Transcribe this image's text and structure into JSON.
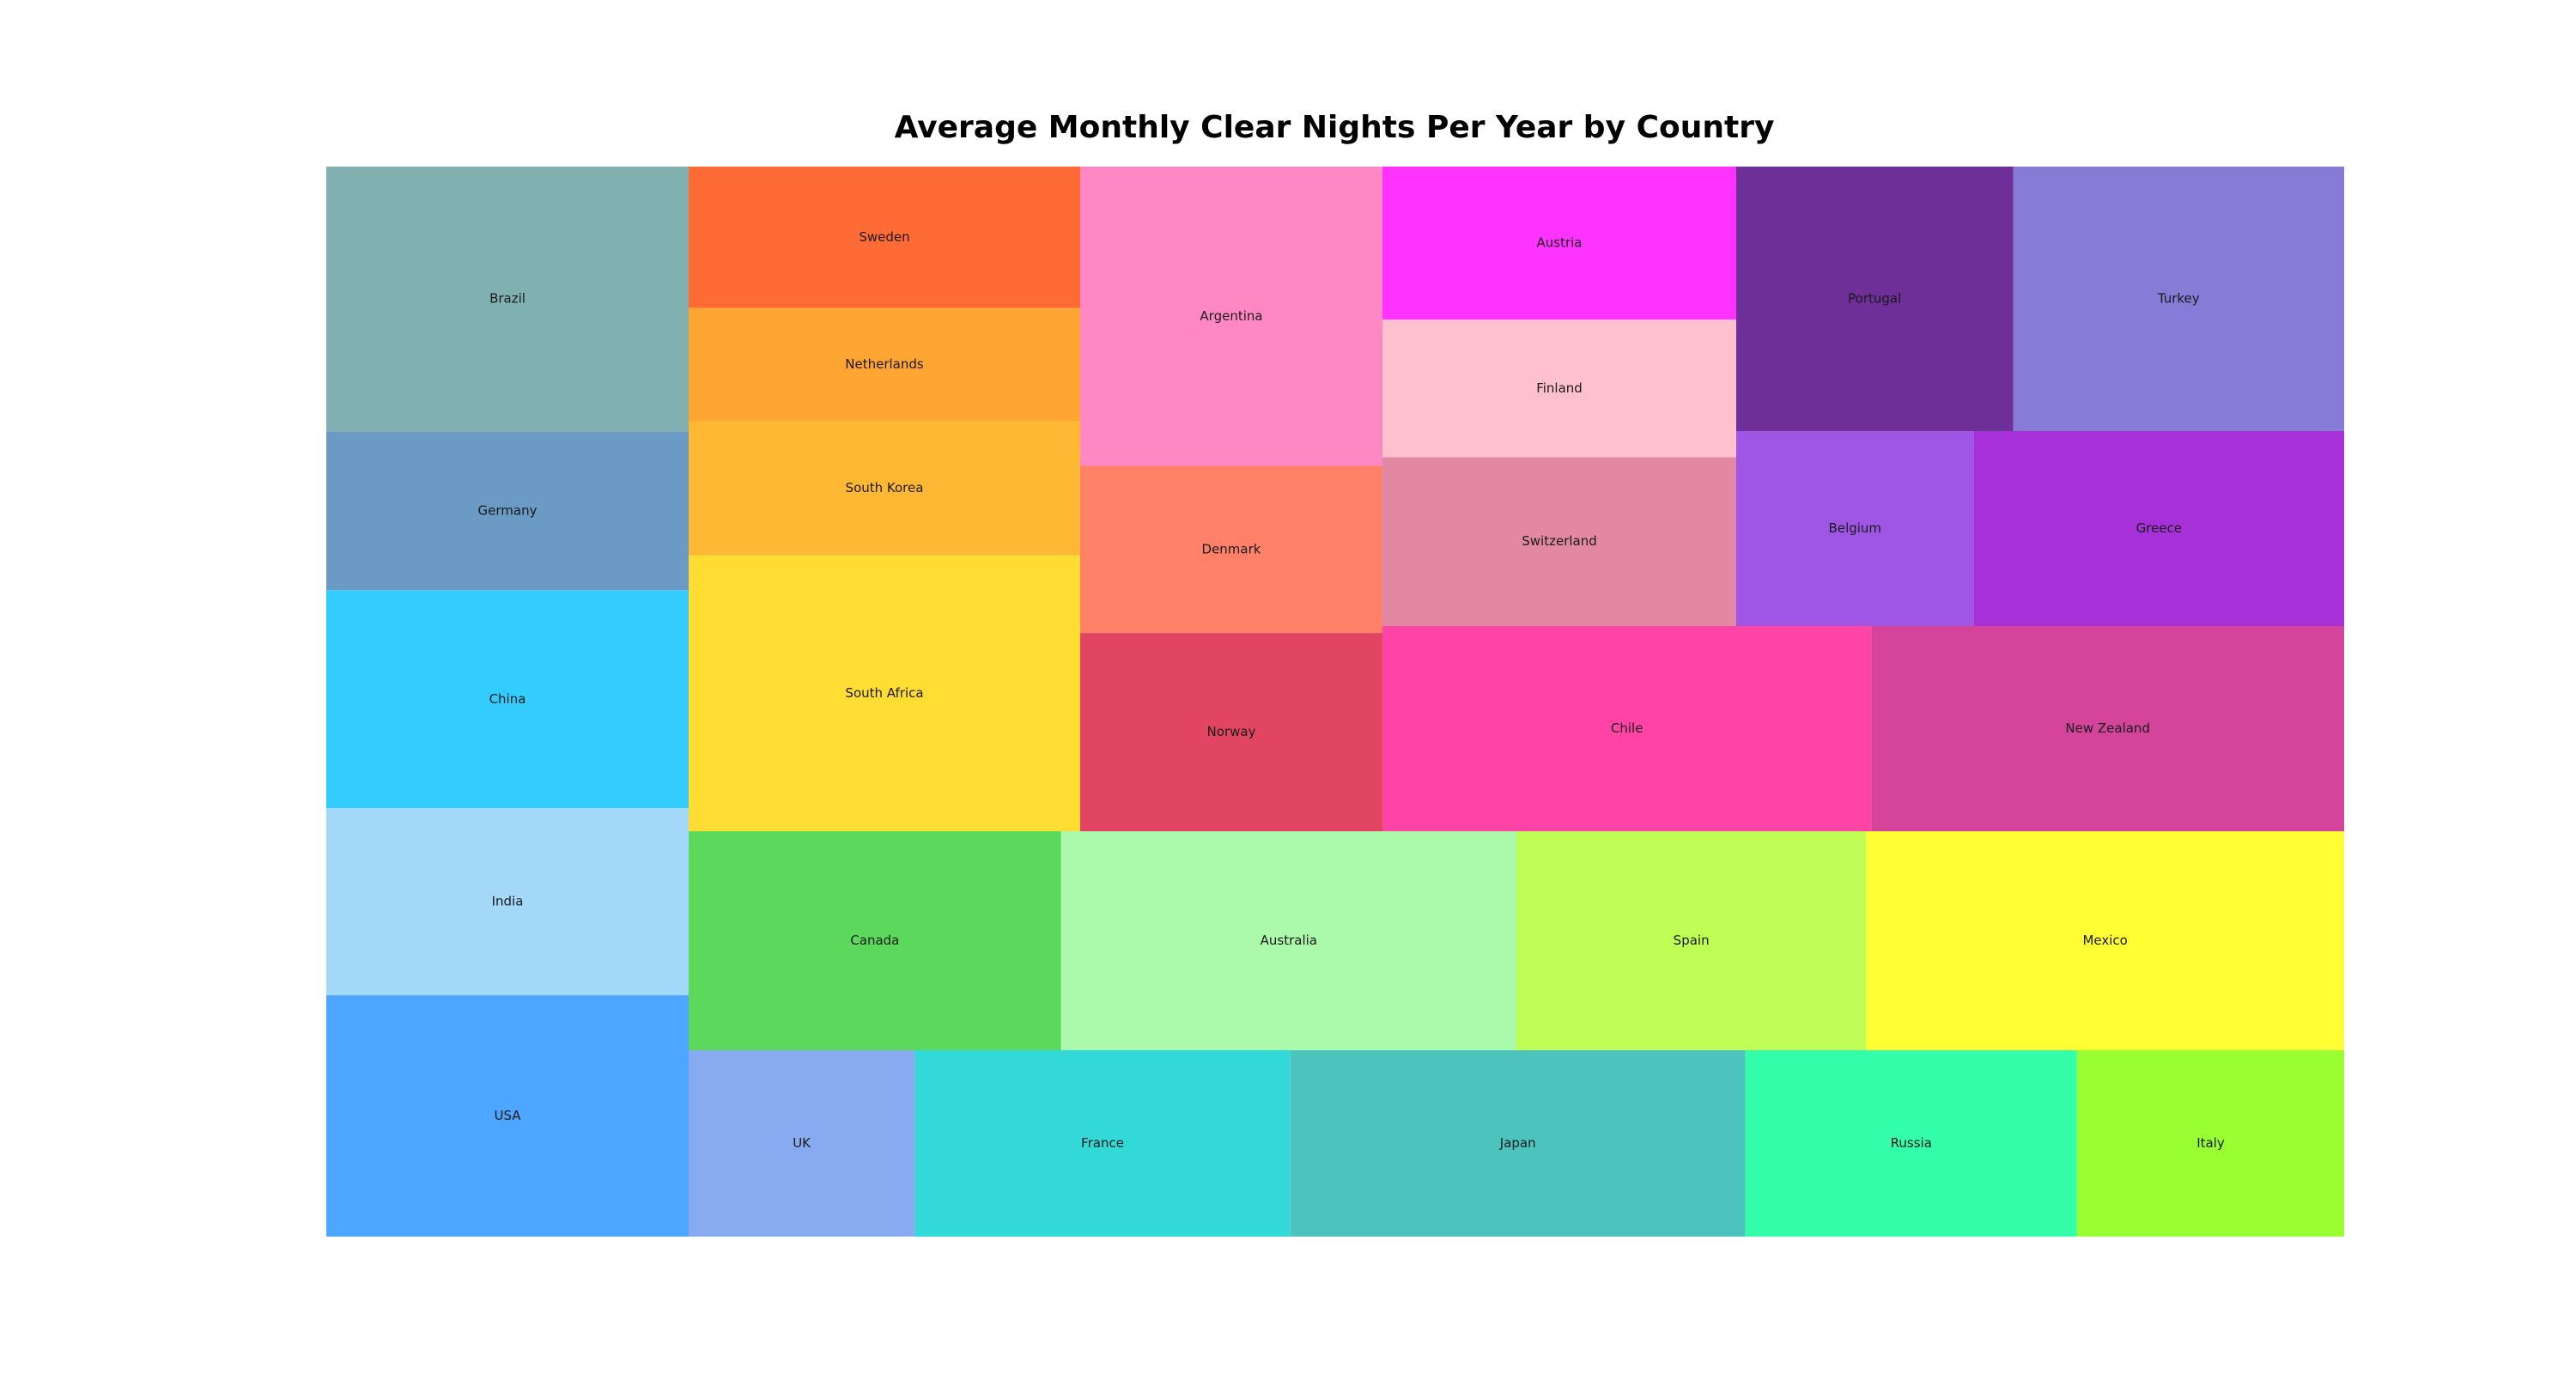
{
  "chart_data": {
    "type": "treemap",
    "title": "Average Monthly Clear Nights Per Year by Country",
    "groups": [
      {
        "cells": [
          {
            "name": "Brazil",
            "color": "#80B1B0",
            "value": 170
          },
          {
            "name": "Germany",
            "color": "#6B9AC4",
            "value": 102
          },
          {
            "name": "China",
            "color": "#33CCFF",
            "value": 140
          },
          {
            "name": "India",
            "color": "#A3D8F8",
            "value": 120
          },
          {
            "name": "USA",
            "color": "#4DA6FF",
            "value": 155
          }
        ]
      },
      {
        "cells": [
          {
            "name": "Sweden",
            "color": "#FF6B35",
            "value": 100
          },
          {
            "name": "Netherlands",
            "color": "#FFA533",
            "value": 80
          },
          {
            "name": "South Korea",
            "color": "#FFB833",
            "value": 95
          },
          {
            "name": "South Africa",
            "color": "#FFDD33",
            "value": 195
          }
        ]
      },
      {
        "cells": [
          {
            "name": "Argentina",
            "color": "#FF88C4",
            "value": 163
          },
          {
            "name": "Denmark",
            "color": "#FF8268",
            "value": 91
          },
          {
            "name": "Norway",
            "color": "#E24562",
            "value": 108
          }
        ]
      },
      {
        "cells": [
          {
            "name": "Austria",
            "color": "#FF33FF",
            "value": 98
          },
          {
            "name": "Finland",
            "color": "#FFC0CD",
            "value": 88
          },
          {
            "name": "Switzerland",
            "color": "#E288A5",
            "value": 108
          }
        ]
      },
      {
        "cells": [
          {
            "name": "Portugal",
            "color": "#6F2F98",
            "value": 133
          },
          {
            "name": "Turkey",
            "color": "#887BD8",
            "value": 159
          }
        ]
      },
      {
        "cells": [
          {
            "name": "Belgium",
            "color": "#A056E5",
            "value": 84
          },
          {
            "name": "Greece",
            "color": "#A731D8",
            "value": 131
          }
        ]
      },
      {
        "cells": [
          {
            "name": "Chile",
            "color": "#FF44A6",
            "value": 182
          },
          {
            "name": "New Zealand",
            "color": "#D3449A",
            "value": 176
          }
        ]
      },
      {
        "cells": [
          {
            "name": "Canada",
            "color": "#5CD95C",
            "value": 148
          },
          {
            "name": "Australia",
            "color": "#ABF9AA",
            "value": 181
          },
          {
            "name": "Spain",
            "color": "#BFFF55",
            "value": 139
          },
          {
            "name": "Mexico",
            "color": "#FFFF33",
            "value": 190
          }
        ]
      },
      {
        "cells": [
          {
            "name": "UK",
            "color": "#88AAF0",
            "value": 77
          },
          {
            "name": "France",
            "color": "#33D9D9",
            "value": 128
          },
          {
            "name": "Japan",
            "color": "#4DC3BE",
            "value": 155
          },
          {
            "name": "Russia",
            "color": "#33FFAA",
            "value": 113
          },
          {
            "name": "Italy",
            "color": "#99FF33",
            "value": 91
          }
        ]
      }
    ]
  }
}
